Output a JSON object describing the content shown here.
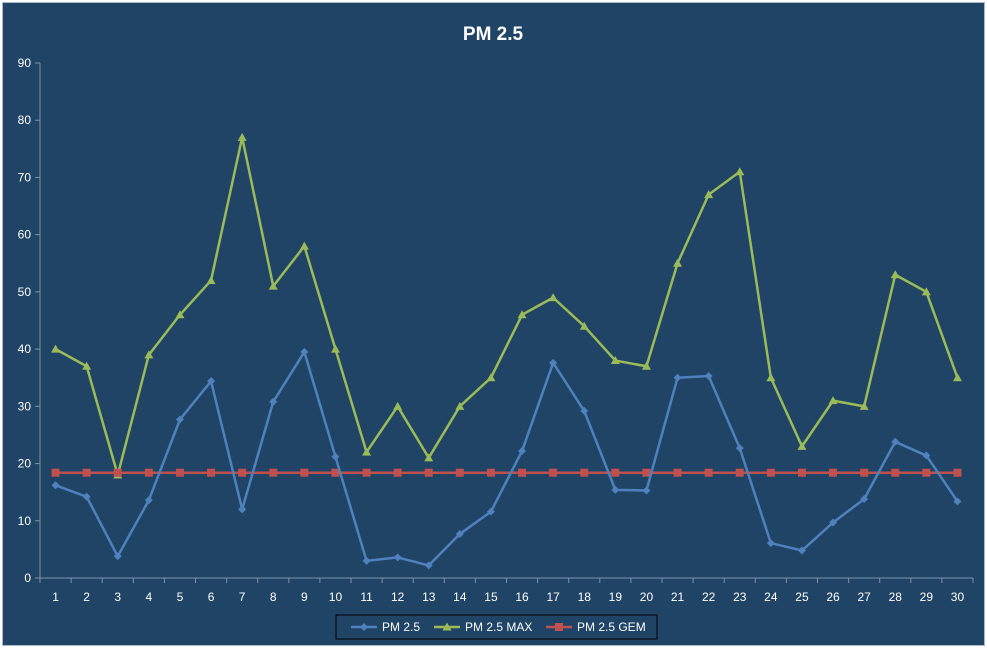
{
  "chart_data": {
    "type": "line",
    "title": "PM 2.5",
    "xlabel": "",
    "ylabel": "",
    "ylim": [
      0,
      90
    ],
    "yticks": [
      0,
      10,
      20,
      30,
      40,
      50,
      60,
      70,
      80,
      90
    ],
    "grid": false,
    "legend_position": "bottom",
    "categories": [
      1,
      2,
      3,
      4,
      5,
      6,
      7,
      8,
      9,
      10,
      11,
      12,
      13,
      14,
      15,
      16,
      17,
      18,
      19,
      20,
      21,
      22,
      23,
      24,
      25,
      26,
      27,
      28,
      29,
      30
    ],
    "series": [
      {
        "name": "PM 2.5",
        "color": "#4f81bd",
        "marker": "diamond",
        "values": [
          16.2,
          14.2,
          3.8,
          13.6,
          27.7,
          34.4,
          12.0,
          30.8,
          39.5,
          21.2,
          3.0,
          3.6,
          2.2,
          7.7,
          11.6,
          22.2,
          37.6,
          29.2,
          15.4,
          15.3,
          35.0,
          35.3,
          22.7,
          6.1,
          4.8,
          9.7,
          13.8,
          23.8,
          21.4,
          13.4
        ]
      },
      {
        "name": "PM 2.5 MAX",
        "color": "#9bbb59",
        "marker": "triangle",
        "values": [
          40,
          37,
          18,
          39,
          46,
          52,
          77,
          51,
          58,
          40,
          22,
          30,
          21,
          30,
          35,
          46,
          49,
          44,
          38,
          37,
          55,
          67,
          71,
          35,
          23,
          31,
          30,
          53,
          50,
          35
        ]
      },
      {
        "name": "PM 2.5 GEM",
        "color": "#c0504d",
        "marker": "square",
        "values": [
          18.4,
          18.4,
          18.4,
          18.4,
          18.4,
          18.4,
          18.4,
          18.4,
          18.4,
          18.4,
          18.4,
          18.4,
          18.4,
          18.4,
          18.4,
          18.4,
          18.4,
          18.4,
          18.4,
          18.4,
          18.4,
          18.4,
          18.4,
          18.4,
          18.4,
          18.4,
          18.4,
          18.4,
          18.4,
          18.4
        ]
      }
    ]
  }
}
